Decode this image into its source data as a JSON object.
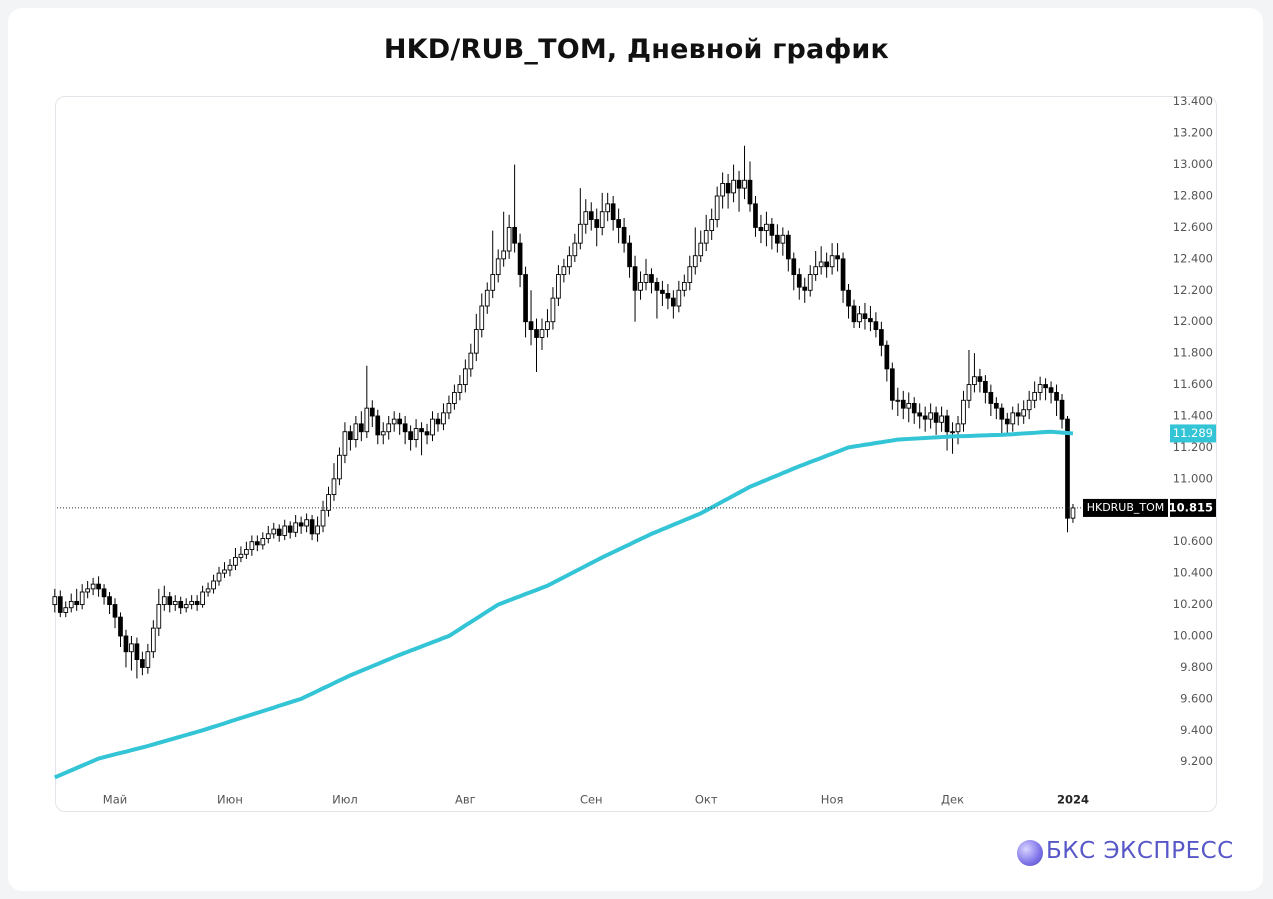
{
  "chart_data": {
    "type": "candlestick",
    "title": "HKD/RUB_TOM, Дневной график",
    "categories": [
      null,
      null,
      null,
      null,
      null,
      null,
      null,
      null,
      null,
      null,
      null,
      "Май",
      null,
      null,
      null,
      null,
      null,
      null,
      null,
      null,
      null,
      null,
      null,
      null,
      null,
      null,
      null,
      null,
      null,
      null,
      null,
      null,
      "Июн",
      null,
      null,
      null,
      null,
      null,
      null,
      null,
      null,
      null,
      null,
      null,
      null,
      null,
      null,
      null,
      null,
      null,
      null,
      null,
      null,
      "Июл",
      null,
      null,
      null,
      null,
      null,
      null,
      null,
      null,
      null,
      null,
      null,
      null,
      null,
      null,
      null,
      null,
      null,
      null,
      null,
      null,
      null,
      "Авг",
      null,
      null,
      null,
      null,
      null,
      null,
      null,
      null,
      null,
      null,
      null,
      null,
      null,
      null,
      null,
      null,
      null,
      null,
      null,
      null,
      null,
      null,
      "Сен",
      null,
      null,
      null,
      null,
      null,
      null,
      null,
      null,
      null,
      null,
      null,
      null,
      null,
      null,
      null,
      null,
      null,
      null,
      null,
      null,
      "Окт",
      null,
      null,
      null,
      null,
      null,
      null,
      null,
      null,
      null,
      null,
      null,
      null,
      null,
      null,
      null,
      null,
      null,
      null,
      null,
      null,
      null,
      null,
      "Ноя",
      null,
      null,
      null,
      null,
      null,
      null,
      null,
      null,
      null,
      null,
      null,
      null,
      null,
      null,
      null,
      null,
      null,
      null,
      null,
      null,
      null,
      "Дек",
      null,
      null,
      null,
      null,
      null,
      null,
      null,
      null,
      null,
      null,
      null,
      null,
      null,
      null,
      null,
      null,
      null,
      null,
      null,
      null,
      null,
      "2024"
    ],
    "series": [
      {
        "name": "HKDRUB_TOM",
        "up_color": "#ffffff",
        "down_color": "#000000",
        "outline_color": "#000000",
        "open": [
          10.2,
          10.25,
          10.15,
          10.18,
          10.22,
          10.2,
          10.28,
          10.3,
          10.33,
          10.3,
          10.25,
          10.2,
          10.12,
          10.0,
          9.9,
          9.95,
          9.85,
          9.8,
          9.9,
          10.05,
          10.2,
          10.25,
          10.2,
          10.22,
          10.18,
          10.2,
          10.22,
          10.2,
          10.28,
          10.3,
          10.35,
          10.4,
          10.42,
          10.45,
          10.5,
          10.52,
          10.55,
          10.6,
          10.58,
          10.62,
          10.65,
          10.68,
          10.64,
          10.7,
          10.66,
          10.72,
          10.7,
          10.74,
          10.65,
          10.7,
          10.8,
          10.9,
          11.0,
          11.15,
          11.3,
          11.25,
          11.35,
          11.3,
          11.45,
          11.4,
          11.28,
          11.3,
          11.35,
          11.38,
          11.35,
          11.3,
          11.25,
          11.32,
          11.3,
          11.28,
          11.38,
          11.35,
          11.42,
          11.48,
          11.55,
          11.6,
          11.7,
          11.8,
          11.95,
          12.1,
          12.2,
          12.3,
          12.4,
          12.45,
          12.6,
          12.5,
          12.3,
          12.0,
          11.95,
          11.9,
          11.95,
          12.0,
          12.15,
          12.3,
          12.35,
          12.42,
          12.5,
          12.62,
          12.7,
          12.65,
          12.6,
          12.7,
          12.75,
          12.65,
          12.6,
          12.5,
          12.35,
          12.2,
          12.25,
          12.3,
          12.25,
          12.2,
          12.18,
          12.15,
          12.1,
          12.2,
          12.25,
          12.35,
          12.42,
          12.5,
          12.58,
          12.65,
          12.8,
          12.88,
          12.82,
          12.9,
          12.85,
          12.9,
          12.75,
          12.6,
          12.58,
          12.62,
          12.55,
          12.5,
          12.55,
          12.4,
          12.3,
          12.22,
          12.2,
          12.3,
          12.35,
          12.38,
          12.35,
          12.42,
          12.4,
          12.2,
          12.1,
          12.0,
          12.05,
          12.02,
          12.0,
          11.95,
          11.85,
          11.7,
          11.5,
          11.5,
          11.45,
          11.48,
          11.42,
          11.4,
          11.38,
          11.42,
          11.36,
          11.4,
          11.3,
          11.3,
          11.35,
          11.5,
          11.6,
          11.65,
          11.62,
          11.55,
          11.48,
          11.45,
          11.38,
          11.35,
          11.42,
          11.4,
          11.44,
          11.5,
          11.55,
          11.6,
          11.58,
          11.55,
          11.5,
          11.38,
          10.75
        ],
        "high": [
          10.3,
          10.29,
          10.22,
          10.27,
          10.3,
          10.33,
          10.35,
          10.37,
          10.38,
          10.33,
          10.28,
          10.24,
          10.15,
          10.04,
          10.0,
          9.99,
          9.9,
          9.95,
          10.1,
          10.3,
          10.32,
          10.28,
          10.26,
          10.25,
          10.24,
          10.26,
          10.26,
          10.32,
          10.34,
          10.39,
          10.44,
          10.47,
          10.49,
          10.56,
          10.57,
          10.6,
          10.64,
          10.64,
          10.66,
          10.7,
          10.72,
          10.71,
          10.74,
          10.73,
          10.77,
          10.76,
          10.78,
          10.77,
          10.76,
          10.86,
          10.95,
          11.1,
          11.2,
          11.36,
          11.34,
          11.4,
          11.43,
          11.72,
          11.5,
          11.44,
          11.36,
          11.4,
          11.43,
          11.42,
          11.4,
          11.34,
          11.38,
          11.36,
          11.35,
          11.43,
          11.42,
          11.48,
          11.53,
          11.6,
          11.66,
          11.76,
          11.86,
          12.05,
          12.18,
          12.25,
          12.58,
          12.46,
          12.7,
          12.68,
          13.0,
          12.56,
          12.35,
          12.2,
          12.02,
          12.02,
          12.08,
          12.22,
          12.36,
          12.4,
          12.48,
          12.56,
          12.85,
          12.78,
          12.76,
          12.72,
          12.82,
          12.82,
          12.8,
          12.72,
          12.66,
          12.55,
          12.42,
          12.32,
          12.4,
          12.34,
          12.28,
          12.26,
          12.24,
          12.2,
          12.26,
          12.3,
          12.42,
          12.6,
          12.58,
          12.68,
          12.72,
          12.86,
          12.95,
          12.94,
          13.0,
          12.96,
          13.12,
          13.02,
          12.8,
          12.68,
          12.7,
          12.66,
          12.62,
          12.6,
          12.58,
          12.44,
          12.34,
          12.28,
          12.36,
          12.45,
          12.48,
          12.44,
          12.5,
          12.5,
          12.44,
          12.24,
          12.14,
          12.1,
          12.12,
          12.1,
          12.06,
          12.0,
          11.88,
          11.74,
          11.58,
          11.56,
          11.55,
          11.52,
          11.48,
          11.46,
          11.48,
          11.46,
          11.46,
          11.44,
          11.36,
          11.4,
          11.56,
          11.82,
          11.8,
          11.7,
          11.66,
          11.6,
          11.52,
          11.48,
          11.42,
          11.46,
          11.48,
          11.5,
          11.56,
          11.62,
          11.65,
          11.64,
          11.62,
          11.6,
          11.54,
          11.4,
          10.84
        ],
        "low": [
          10.15,
          10.12,
          10.12,
          10.15,
          10.16,
          10.17,
          10.24,
          10.26,
          10.25,
          10.2,
          10.14,
          10.05,
          9.93,
          9.8,
          9.78,
          9.73,
          9.75,
          9.76,
          9.86,
          10.0,
          10.16,
          10.15,
          10.16,
          10.14,
          10.15,
          10.17,
          10.16,
          10.18,
          10.25,
          10.27,
          10.32,
          10.37,
          10.38,
          10.42,
          10.47,
          10.49,
          10.51,
          10.54,
          10.55,
          10.59,
          10.62,
          10.6,
          10.61,
          10.62,
          10.63,
          10.65,
          10.66,
          10.61,
          10.6,
          10.66,
          10.76,
          10.86,
          10.96,
          11.1,
          11.18,
          11.2,
          11.24,
          11.26,
          11.33,
          11.22,
          11.22,
          11.25,
          11.3,
          11.28,
          11.22,
          11.18,
          11.2,
          11.15,
          11.22,
          11.24,
          11.3,
          11.31,
          11.38,
          11.44,
          11.5,
          11.55,
          11.65,
          11.75,
          11.9,
          12.05,
          12.15,
          12.25,
          12.35,
          12.4,
          12.44,
          12.22,
          11.9,
          11.85,
          11.68,
          11.82,
          11.9,
          11.95,
          12.1,
          12.25,
          12.3,
          12.38,
          12.46,
          12.56,
          12.58,
          12.48,
          12.55,
          12.64,
          12.58,
          12.5,
          12.44,
          12.28,
          12.0,
          12.14,
          12.2,
          12.18,
          12.02,
          12.1,
          12.08,
          12.02,
          12.06,
          12.16,
          12.2,
          12.3,
          12.38,
          12.45,
          12.52,
          12.6,
          12.72,
          12.72,
          12.76,
          12.7,
          12.78,
          12.7,
          12.54,
          12.5,
          12.48,
          12.46,
          12.44,
          12.42,
          12.32,
          12.2,
          12.14,
          12.12,
          12.16,
          12.26,
          12.3,
          12.28,
          12.3,
          12.32,
          12.12,
          12.02,
          11.96,
          11.96,
          11.95,
          11.94,
          11.9,
          11.78,
          11.62,
          11.44,
          11.4,
          11.38,
          11.36,
          11.35,
          11.32,
          11.3,
          11.32,
          11.28,
          11.3,
          11.18,
          11.16,
          11.22,
          11.3,
          11.45,
          11.55,
          11.55,
          11.48,
          11.4,
          11.38,
          11.28,
          11.28,
          11.3,
          11.34,
          11.35,
          11.38,
          11.45,
          11.5,
          11.5,
          11.48,
          11.4,
          11.32,
          10.66,
          10.72
        ],
        "close": [
          10.25,
          10.15,
          10.18,
          10.22,
          10.2,
          10.28,
          10.3,
          10.33,
          10.3,
          10.25,
          10.2,
          10.12,
          10.0,
          9.9,
          9.95,
          9.85,
          9.8,
          9.9,
          10.05,
          10.2,
          10.25,
          10.2,
          10.22,
          10.18,
          10.2,
          10.22,
          10.2,
          10.28,
          10.3,
          10.35,
          10.4,
          10.42,
          10.45,
          10.5,
          10.52,
          10.55,
          10.6,
          10.58,
          10.62,
          10.65,
          10.68,
          10.64,
          10.7,
          10.66,
          10.72,
          10.7,
          10.74,
          10.65,
          10.7,
          10.8,
          10.9,
          11.0,
          11.15,
          11.3,
          11.25,
          11.35,
          11.3,
          11.45,
          11.4,
          11.28,
          11.3,
          11.35,
          11.38,
          11.35,
          11.3,
          11.25,
          11.32,
          11.3,
          11.28,
          11.38,
          11.35,
          11.42,
          11.48,
          11.55,
          11.6,
          11.7,
          11.8,
          11.95,
          12.1,
          12.2,
          12.3,
          12.4,
          12.45,
          12.6,
          12.5,
          12.3,
          12.0,
          11.95,
          11.9,
          11.95,
          12.0,
          12.15,
          12.3,
          12.35,
          12.42,
          12.5,
          12.62,
          12.7,
          12.65,
          12.6,
          12.7,
          12.75,
          12.65,
          12.6,
          12.5,
          12.35,
          12.2,
          12.25,
          12.3,
          12.25,
          12.2,
          12.18,
          12.15,
          12.1,
          12.2,
          12.25,
          12.35,
          12.42,
          12.5,
          12.58,
          12.65,
          12.8,
          12.88,
          12.82,
          12.9,
          12.85,
          12.9,
          12.75,
          12.6,
          12.58,
          12.62,
          12.55,
          12.5,
          12.55,
          12.4,
          12.3,
          12.22,
          12.2,
          12.3,
          12.35,
          12.38,
          12.35,
          12.42,
          12.4,
          12.2,
          12.1,
          12.0,
          12.05,
          12.02,
          12.0,
          11.95,
          11.85,
          11.7,
          11.5,
          11.5,
          11.45,
          11.48,
          11.42,
          11.4,
          11.38,
          11.42,
          11.36,
          11.4,
          11.3,
          11.3,
          11.35,
          11.5,
          11.6,
          11.65,
          11.62,
          11.55,
          11.48,
          11.45,
          11.38,
          11.35,
          11.42,
          11.4,
          11.44,
          11.5,
          11.55,
          11.6,
          11.58,
          11.55,
          11.5,
          11.38,
          10.75,
          10.815
        ]
      }
    ],
    "ma": {
      "color": "#33c4d6",
      "values": [
        9.1,
        9.115,
        9.13,
        9.145,
        9.16,
        9.175,
        9.19,
        9.205,
        9.22,
        9.229,
        9.238,
        9.247,
        9.256,
        9.264,
        9.273,
        9.282,
        9.291,
        9.3,
        9.31,
        9.32,
        9.33,
        9.34,
        9.35,
        9.36,
        9.37,
        9.38,
        9.39,
        9.4,
        9.411,
        9.422,
        9.433,
        9.444,
        9.456,
        9.467,
        9.478,
        9.489,
        9.5,
        9.511,
        9.522,
        9.533,
        9.544,
        9.556,
        9.567,
        9.578,
        9.589,
        9.6,
        9.617,
        9.633,
        9.65,
        9.667,
        9.683,
        9.7,
        9.717,
        9.733,
        9.75,
        9.764,
        9.779,
        9.793,
        9.808,
        9.822,
        9.837,
        9.851,
        9.866,
        9.88,
        9.893,
        9.907,
        9.92,
        9.933,
        9.947,
        9.96,
        9.973,
        9.987,
        10.0,
        10.022,
        10.044,
        10.067,
        10.089,
        10.111,
        10.133,
        10.156,
        10.178,
        10.2,
        10.213,
        10.227,
        10.24,
        10.253,
        10.267,
        10.28,
        10.293,
        10.307,
        10.32,
        10.338,
        10.356,
        10.374,
        10.392,
        10.41,
        10.428,
        10.446,
        10.464,
        10.482,
        10.5,
        10.517,
        10.533,
        10.55,
        10.567,
        10.583,
        10.6,
        10.617,
        10.633,
        10.65,
        10.664,
        10.679,
        10.693,
        10.708,
        10.722,
        10.737,
        10.751,
        10.766,
        10.78,
        10.799,
        10.818,
        10.837,
        10.856,
        10.874,
        10.893,
        10.912,
        10.931,
        10.95,
        10.964,
        10.979,
        10.993,
        11.008,
        11.022,
        11.037,
        11.051,
        11.066,
        11.08,
        11.093,
        11.107,
        11.12,
        11.133,
        11.147,
        11.16,
        11.173,
        11.187,
        11.2,
        11.206,
        11.211,
        11.217,
        11.222,
        11.228,
        11.233,
        11.239,
        11.244,
        11.25,
        11.252,
        11.254,
        11.256,
        11.258,
        11.26,
        11.262,
        11.264,
        11.266,
        11.268,
        11.27,
        11.271,
        11.272,
        11.273,
        11.274,
        11.276,
        11.277,
        11.278,
        11.279,
        11.28,
        11.282,
        11.284,
        11.287,
        11.289,
        11.291,
        11.293,
        11.296,
        11.298,
        11.3,
        11.297,
        11.294,
        11.292,
        11.289
      ]
    },
    "ylim": [
      9.02,
      13.43
    ],
    "yticks": [
      {
        "value": 9.2,
        "label": "9.200"
      },
      {
        "value": 9.4,
        "label": "9.400"
      },
      {
        "value": 9.6,
        "label": "9.600"
      },
      {
        "value": 9.8,
        "label": "9.800"
      },
      {
        "value": 10.0,
        "label": "10.000"
      },
      {
        "value": 10.2,
        "label": "10.200"
      },
      {
        "value": 10.4,
        "label": "10.400"
      },
      {
        "value": 10.6,
        "label": "10.600"
      },
      {
        "value": 10.8,
        "label": "10.800"
      },
      {
        "value": 11.0,
        "label": "11.000"
      },
      {
        "value": 11.2,
        "label": "11.200"
      },
      {
        "value": 11.4,
        "label": "11.400"
      },
      {
        "value": 11.6,
        "label": "11.600"
      },
      {
        "value": 11.8,
        "label": "11.800"
      },
      {
        "value": 12.0,
        "label": "12.000"
      },
      {
        "value": 12.2,
        "label": "12.200"
      },
      {
        "value": 12.4,
        "label": "12.400"
      },
      {
        "value": 12.6,
        "label": "12.600"
      },
      {
        "value": 12.8,
        "label": "12.800"
      },
      {
        "value": 13.0,
        "label": "13.000"
      },
      {
        "value": 13.2,
        "label": "13.200"
      },
      {
        "value": 13.4,
        "label": "13.400"
      }
    ],
    "grid": false
  },
  "brand": "БКС ЭКСПРЕСС"
}
